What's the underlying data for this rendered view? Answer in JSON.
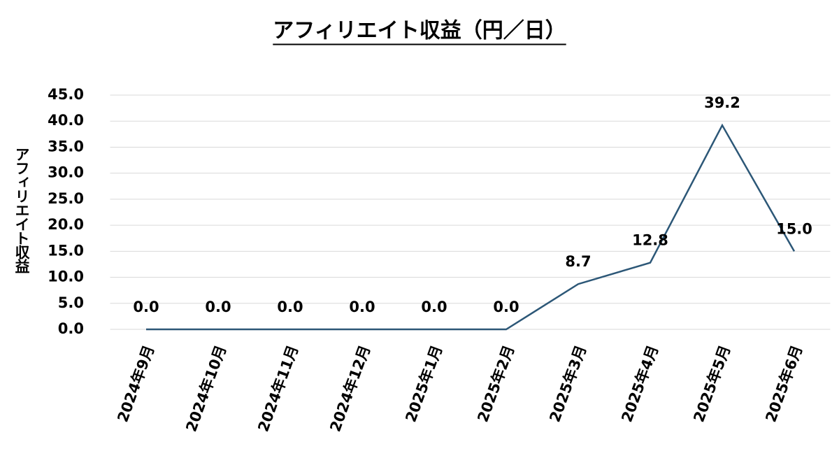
{
  "chart_data": {
    "type": "line",
    "title": "アフィリエイト収益（円／日）",
    "y_label": "アフィリエイト収益",
    "categories": [
      "2024年9月",
      "2024年10月",
      "2024年11月",
      "2024年12月",
      "2025年1月",
      "2025年2月",
      "2025年3月",
      "2025年4月",
      "2025年5月",
      "2025年6月"
    ],
    "values": [
      0,
      0,
      0,
      0,
      0,
      0,
      8.7,
      12.8,
      39.2,
      15.0
    ],
    "value_labels": [
      "0.0",
      "0.0",
      "0.0",
      "0.0",
      "0.0",
      "0.0",
      "8.7",
      "12.8",
      "39.2",
      "15.0"
    ],
    "color": "#2c5777",
    "ylim": [
      0,
      45
    ],
    "yticks": [
      {
        "value": 0,
        "label": "0.0"
      },
      {
        "value": 5,
        "label": "5.0"
      },
      {
        "value": 10,
        "label": "10.0"
      },
      {
        "value": 15,
        "label": "15.0"
      },
      {
        "value": 20,
        "label": "20.0"
      },
      {
        "value": 25,
        "label": "25.0"
      },
      {
        "value": 30,
        "label": "30.0"
      },
      {
        "value": 35,
        "label": "35.0"
      },
      {
        "value": 40,
        "label": "40.0"
      },
      {
        "value": 45,
        "label": "45.0"
      }
    ],
    "grid": true
  }
}
